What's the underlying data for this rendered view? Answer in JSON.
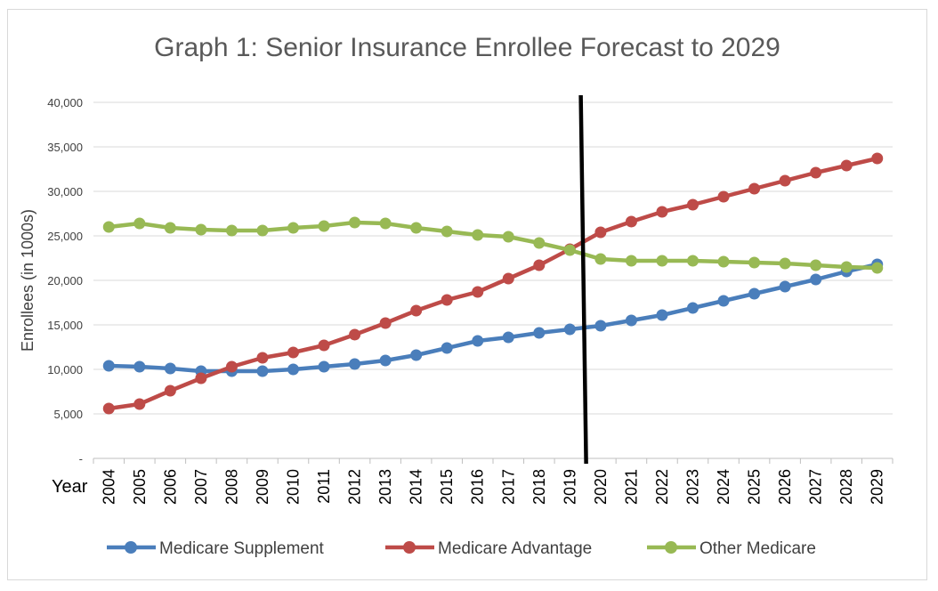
{
  "chart_data": {
    "type": "line",
    "title": "Graph 1: Senior Insurance Enrollee Forecast to 2029",
    "xlabel": "Year",
    "ylabel": "Enrollees (in 1000s)",
    "ylim": [
      0,
      40000
    ],
    "yticks": [
      0,
      5000,
      10000,
      15000,
      20000,
      25000,
      30000,
      35000,
      40000
    ],
    "ytick_labels": [
      "-",
      "5,000",
      "10,000",
      "15,000",
      "20,000",
      "25,000",
      "30,000",
      "35,000",
      "40,000"
    ],
    "grid": true,
    "legend_position": "bottom",
    "categories": [
      "2004",
      "2005",
      "2006",
      "2007",
      "2008",
      "2009",
      "2010",
      "2011",
      "2012",
      "2013",
      "2014",
      "2015",
      "2016",
      "2017",
      "2018",
      "2019",
      "2020",
      "2021",
      "2022",
      "2023",
      "2024",
      "2025",
      "2026",
      "2027",
      "2028",
      "2029"
    ],
    "divider_after": "2019",
    "series": [
      {
        "name": "Medicare Supplement",
        "color": "#4a7ebb",
        "values": [
          10400,
          10300,
          10100,
          9800,
          9800,
          9800,
          10000,
          10300,
          10600,
          11000,
          11600,
          12400,
          13200,
          13600,
          14100,
          14500,
          14900,
          15500,
          16100,
          16900,
          17700,
          18500,
          19300,
          20100,
          21000,
          21800
        ]
      },
      {
        "name": "Medicare Advantage",
        "color": "#be4b48",
        "values": [
          5600,
          6100,
          7600,
          9000,
          10300,
          11300,
          11900,
          12700,
          13900,
          15200,
          16600,
          17800,
          18700,
          20200,
          21700,
          23500,
          25400,
          26600,
          27700,
          28500,
          29400,
          30300,
          31200,
          32100,
          32900,
          33700
        ]
      },
      {
        "name": "Other Medicare",
        "color": "#98b954",
        "values": [
          26000,
          26400,
          25900,
          25700,
          25600,
          25600,
          25900,
          26100,
          26500,
          26400,
          25900,
          25500,
          25100,
          24900,
          24200,
          23400,
          22400,
          22200,
          22200,
          22200,
          22100,
          22000,
          21900,
          21700,
          21500,
          21400
        ]
      }
    ]
  }
}
